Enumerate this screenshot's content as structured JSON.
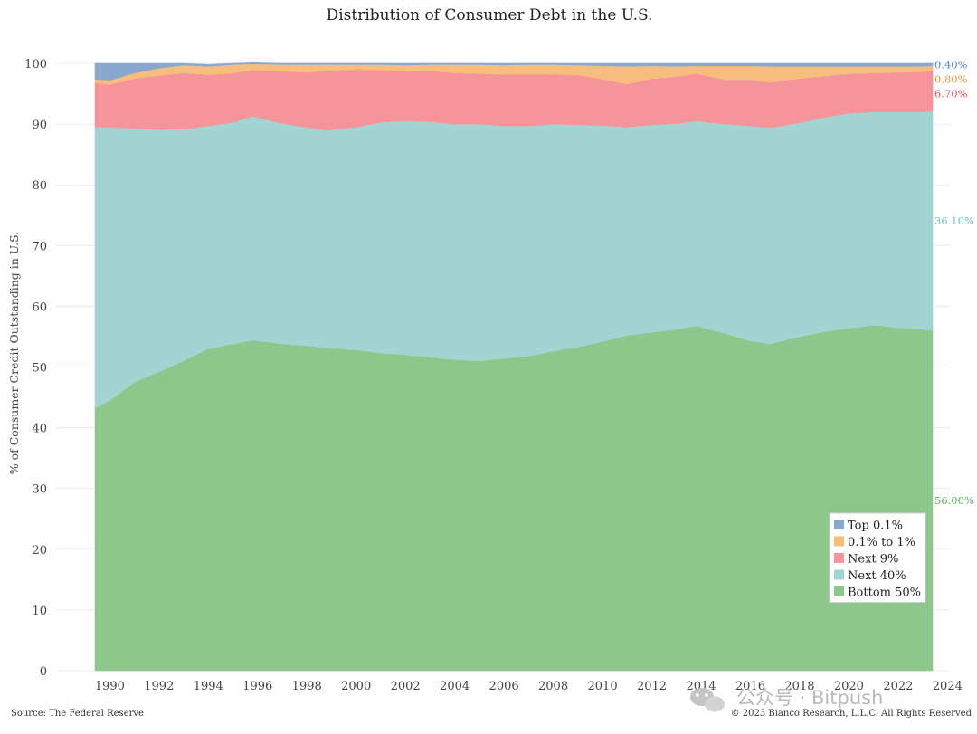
{
  "chart_data": {
    "type": "area",
    "stacked": true,
    "title": "Distribution of Consumer Debt in the U.S.",
    "ylabel": "% of Consumer Credit Outstanding in U.S.",
    "xlabel": "",
    "ylim": [
      0,
      100
    ],
    "xlim": [
      1989.4,
      2023.4
    ],
    "y_ticks": [
      "0",
      "10",
      "20",
      "30",
      "40",
      "50",
      "60",
      "70",
      "80",
      "90",
      "100"
    ],
    "x_ticks": [
      "1990",
      "1992",
      "1994",
      "1996",
      "1998",
      "2000",
      "2002",
      "2004",
      "2006",
      "2008",
      "2010",
      "2012",
      "2014",
      "2016",
      "2018",
      "2020",
      "2022",
      "2024"
    ],
    "x": [
      1989.4,
      1990,
      1991,
      1992,
      1993,
      1994,
      1995,
      1995.8,
      1997,
      1998,
      1998.8,
      2000,
      2001,
      2002,
      2003,
      2004,
      2005,
      2006,
      2007,
      2008,
      2009,
      2010,
      2011,
      2012,
      2013,
      2013.8,
      2015,
      2016,
      2016.8,
      2018,
      2019,
      2020,
      2021,
      2022,
      2023,
      2023.4
    ],
    "series": [
      {
        "name": "Bottom 50%",
        "color": "#8dc78b",
        "values": [
          43.2,
          44.5,
          47.5,
          49.2,
          51.0,
          53.0,
          53.8,
          54.4,
          53.8,
          53.5,
          53.2,
          52.8,
          52.3,
          52.0,
          51.6,
          51.2,
          51.0,
          51.4,
          51.8,
          52.6,
          53.3,
          54.2,
          55.2,
          55.7,
          56.2,
          56.8,
          55.5,
          54.3,
          53.8,
          55.0,
          55.8,
          56.4,
          56.9,
          56.5,
          56.2,
          56.0
        ]
      },
      {
        "name": "Next 40%",
        "color": "#a2d4d1",
        "values": [
          46.3,
          45.0,
          41.8,
          39.9,
          38.2,
          36.7,
          36.5,
          36.9,
          36.3,
          36.0,
          35.8,
          36.7,
          38.0,
          38.5,
          38.8,
          38.8,
          39.0,
          38.3,
          37.9,
          37.4,
          36.6,
          35.6,
          34.3,
          34.2,
          33.9,
          33.7,
          34.5,
          35.4,
          35.6,
          35.2,
          35.3,
          35.4,
          35.1,
          35.5,
          35.8,
          36.1
        ]
      },
      {
        "name": "Next 9%",
        "color": "#f5959a",
        "values": [
          7.3,
          7.0,
          8.2,
          8.9,
          9.2,
          8.4,
          8.1,
          7.6,
          8.6,
          9.0,
          9.8,
          9.5,
          8.6,
          8.2,
          8.4,
          8.4,
          8.3,
          8.5,
          8.5,
          8.2,
          8.2,
          7.6,
          7.1,
          7.6,
          7.7,
          7.8,
          7.3,
          7.6,
          7.5,
          7.3,
          6.8,
          6.5,
          6.4,
          6.5,
          6.6,
          6.7
        ]
      },
      {
        "name": "0.1% to 1%",
        "color": "#f7bd7e",
        "values": [
          0.6,
          0.7,
          0.9,
          1.2,
          1.3,
          1.4,
          1.4,
          1.0,
          1.1,
          1.3,
          1.0,
          0.8,
          0.9,
          1.0,
          1.0,
          1.4,
          1.5,
          1.5,
          1.6,
          1.6,
          1.6,
          2.2,
          2.9,
          2.1,
          1.7,
          1.3,
          2.3,
          2.3,
          2.6,
          2.0,
          1.6,
          1.2,
          1.1,
          1.0,
          0.9,
          0.8
        ]
      },
      {
        "name": "Top 0.1%",
        "color": "#8aa8ce",
        "values": [
          2.6,
          2.8,
          1.6,
          0.8,
          0.3,
          0.3,
          0.2,
          0.2,
          0.2,
          0.2,
          0.2,
          0.2,
          0.2,
          0.3,
          0.2,
          0.2,
          0.2,
          0.3,
          0.2,
          0.2,
          0.3,
          0.4,
          0.5,
          0.4,
          0.5,
          0.4,
          0.4,
          0.4,
          0.5,
          0.5,
          0.5,
          0.5,
          0.5,
          0.5,
          0.5,
          0.4
        ]
      }
    ],
    "end_labels": [
      {
        "series": "Top 0.1%",
        "text": "0.40%",
        "color": "#5f84b5"
      },
      {
        "series": "0.1% to 1%",
        "text": "0.80%",
        "color": "#e9953c"
      },
      {
        "series": "Next 9%",
        "text": "6.70%",
        "color": "#dd5760"
      },
      {
        "series": "Next 40%",
        "text": "36.10%",
        "color": "#6fbfba"
      },
      {
        "series": "Bottom 50%",
        "text": "56.00%",
        "color": "#58ad56"
      }
    ],
    "legend": {
      "placement": "bottom-right",
      "entries": [
        "Top 0.1%",
        "0.1% to 1%",
        "Next 9%",
        "Next 40%",
        "Bottom 50%"
      ]
    },
    "grid": true
  },
  "footer": {
    "source": "Source: The Federal Reserve",
    "copyright": "© 2023 Bianco Research, L.L.C. All Rights Reserved"
  },
  "watermark": {
    "text": "公众号 · Bitpush",
    "icon": "wechat-icon"
  }
}
